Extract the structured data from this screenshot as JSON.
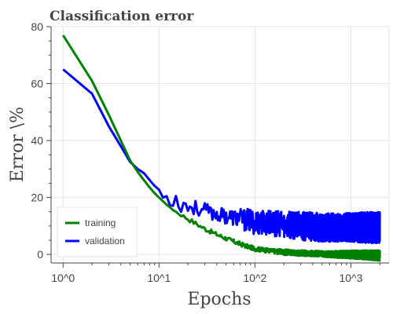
{
  "chart_data": {
    "type": "line",
    "title": "Classification error",
    "xlabel": "Epochs",
    "ylabel": "Error \\%",
    "xscale": "log",
    "xlim": [
      0.75,
      2500
    ],
    "ylim": [
      -3,
      80
    ],
    "grid": true,
    "legend": "bottom-left",
    "x_ticks": [
      {
        "value": 1,
        "label": "10^0"
      },
      {
        "value": 10,
        "label": "10^1"
      },
      {
        "value": 100,
        "label": "10^2"
      },
      {
        "value": 1000,
        "label": "10^3"
      }
    ],
    "y_ticks": [
      {
        "value": 0,
        "label": "0"
      },
      {
        "value": 20,
        "label": "20"
      },
      {
        "value": 40,
        "label": "40"
      },
      {
        "value": 60,
        "label": "60"
      },
      {
        "value": 80,
        "label": "80"
      }
    ],
    "series": [
      {
        "name": "training",
        "color": "#008000",
        "x": [
          1,
          2,
          3,
          4,
          5,
          6,
          7,
          8,
          9,
          10,
          12,
          15,
          20,
          30,
          40,
          60,
          80,
          100,
          150,
          200,
          300,
          500,
          700,
          1000,
          1500,
          2000
        ],
        "y": [
          77,
          61,
          49,
          40,
          33,
          29,
          26,
          23.5,
          21.5,
          20,
          17.5,
          15,
          12.5,
          9,
          7,
          4.5,
          3,
          2,
          1.2,
          0.8,
          0.5,
          0.2,
          0,
          0,
          -0.2,
          -0.4
        ],
        "noise": [
          0,
          0,
          0,
          0,
          0,
          0,
          0,
          0,
          0,
          0,
          0,
          0.5,
          0.8,
          0.8,
          0.8,
          0.8,
          0.8,
          0.8,
          0.8,
          1,
          1,
          1,
          1.2,
          1.4,
          1.6,
          1.8
        ]
      },
      {
        "name": "validation",
        "color": "#0000ff",
        "x": [
          1,
          2,
          3,
          4,
          5,
          6,
          7,
          8,
          9,
          10,
          12,
          15,
          20,
          30,
          40,
          60,
          80,
          100,
          150,
          200,
          300,
          500,
          700,
          1000,
          1500,
          2000
        ],
        "y": [
          65,
          56.5,
          45,
          38,
          32.5,
          30,
          28.5,
          26,
          24,
          22.5,
          20.5,
          19,
          17,
          15.5,
          14,
          13,
          12,
          11.5,
          11,
          10.5,
          10,
          9.5,
          9.5,
          9.5,
          9.5,
          9.5
        ],
        "noise": [
          0,
          0,
          0,
          0,
          0,
          0,
          0,
          1,
          1,
          1.5,
          2.5,
          4,
          3,
          2.5,
          2.5,
          3,
          4,
          4.5,
          4.5,
          4.5,
          5,
          5,
          5,
          5,
          5.5,
          5.5
        ]
      }
    ]
  }
}
